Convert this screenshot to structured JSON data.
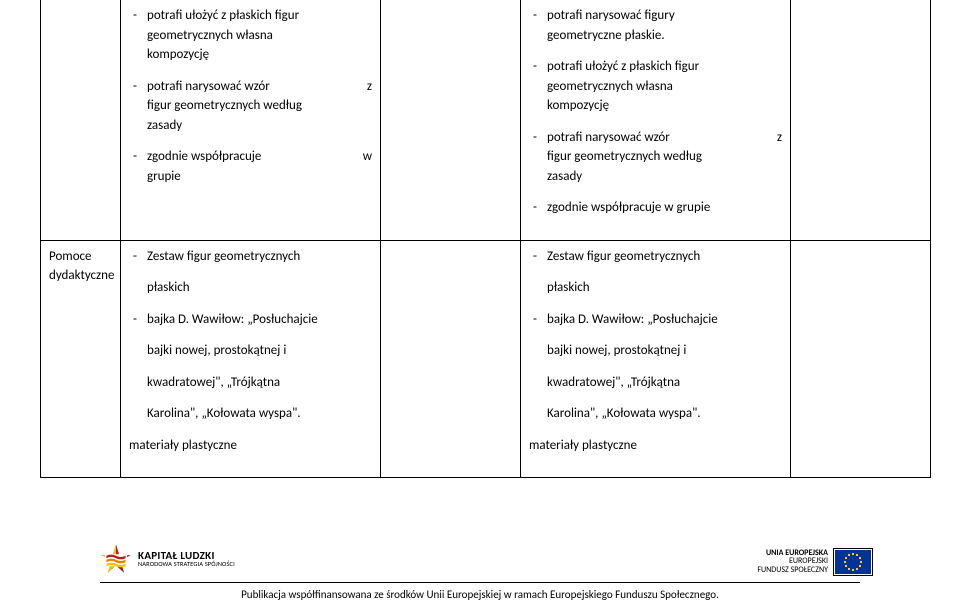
{
  "row1": {
    "col1_items": [
      {
        "lines": [
          "potrafi ułożyć z płaskich figur",
          "geometrycznych własna",
          "kompozycję"
        ],
        "right": [
          null,
          null,
          null
        ]
      },
      {
        "lines": [
          "potrafi narysować wzór",
          "figur geometrycznych według",
          "zasady"
        ],
        "right": [
          "z",
          null,
          null
        ]
      },
      {
        "lines": [
          "zgodnie współpracuje",
          "grupie"
        ],
        "right": [
          "w",
          null
        ]
      }
    ],
    "col3_items": [
      {
        "lines": [
          "potrafi narysować figury",
          "geometryczne płaskie."
        ],
        "right": [
          null,
          null
        ]
      },
      {
        "lines": [
          "potrafi ułożyć z płaskich figur",
          "geometrycznych własna",
          "kompozycję"
        ],
        "right": [
          null,
          null,
          null
        ]
      },
      {
        "lines": [
          "potrafi narysować wzór",
          "figur geometrycznych według",
          "zasady"
        ],
        "right": [
          "z",
          null,
          null
        ]
      },
      {
        "lines": [
          "zgodnie współpracuje w grupie"
        ],
        "right": [
          null
        ]
      }
    ]
  },
  "row2": {
    "label_l1": "Pomoce",
    "label_l2": "dydaktyczne",
    "col1": {
      "item1": "Zestaw figur geometrycznych",
      "item1_cont": "płaskich",
      "item2": "bajka D. Wawiłow: „Posłuchajcie",
      "item2_cont1": "bajki nowej, prostokątnej i",
      "item2_cont2": "kwadratowej\", „Trójkątna",
      "item2_cont3": "Karolina\", „Kołowata wyspa\".",
      "tail": "materiały plastyczne"
    },
    "col3": {
      "item1": "Zestaw figur geometrycznych",
      "item1_cont": "płaskich",
      "item2": "bajka D. Wawiłow: „Posłuchajcie",
      "item2_cont1": "bajki nowej, prostokątnej i",
      "item2_cont2": "kwadratowej\", „Trójkątna",
      "item2_cont3": "Karolina\", „Kołowata wyspa\".",
      "tail": "materiały plastyczne"
    }
  },
  "footer": {
    "left_logo": {
      "line1": "KAPITAŁ LUDZKI",
      "line2": "NARODOWA STRATEGIA SPÓJNOŚCI"
    },
    "right_logo": {
      "line1": "UNIA EUROPEJSKA",
      "line2": "EUROPEJSKI",
      "line3": "FUNDUSZ SPOŁECZNY"
    },
    "caption": "Publikacja współfinansowana ze środków Unii Europejskiej w ramach Europejskiego Funduszu Społecznego."
  },
  "colors": {
    "eu_blue": "#003399",
    "eu_gold": "#ffcc00",
    "kl_red": "#b01f24",
    "kl_orange": "#e98300",
    "kl_yellow": "#f6c100",
    "kl_dark": "#231f20"
  }
}
